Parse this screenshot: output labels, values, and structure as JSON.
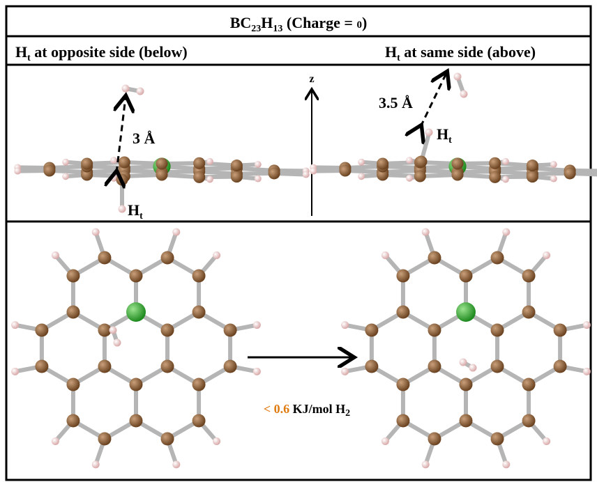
{
  "header": {
    "title": [
      "BC",
      "23",
      "H",
      "13",
      " (Charge = ",
      "0",
      ")"
    ]
  },
  "panels": {
    "left_label": [
      "H",
      "t",
      " at opposite side (below)"
    ],
    "right_label": [
      "H",
      "t",
      " at same side (above)"
    ]
  },
  "side_view": {
    "axis": "z",
    "left_distance": "3 Å",
    "right_distance": "3.5 Å",
    "left_atom": [
      "H",
      "t"
    ],
    "right_atom": [
      "H",
      "t"
    ]
  },
  "top_view": {
    "energy": [
      "< 0.6",
      " KJ/mol H",
      "2"
    ]
  }
}
